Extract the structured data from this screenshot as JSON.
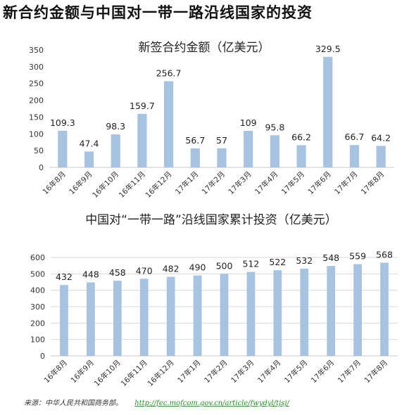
{
  "title": "新合约金额与中国对一带一路沿线国家的投资",
  "source": {
    "label": "来源：中华人民共和国商务部。",
    "url": "http://fec.mofcom.gov.cn/article/fwydyl/tjsj/"
  },
  "colors": {
    "bar": "#a7c3e0",
    "axis": "#c8c8c8",
    "text": "#222222"
  },
  "chart_data": [
    {
      "type": "bar",
      "title": "新签合约金额（亿美元）",
      "categories": [
        "16年8月",
        "16年9月",
        "16年10月",
        "16年11月",
        "16年12月",
        "17年1月",
        "17年2月",
        "17年3月",
        "17年4月",
        "17年5月",
        "17年6月",
        "17年7月",
        "17年8月"
      ],
      "values": [
        109.3,
        47.4,
        98.3,
        159.7,
        256.7,
        56.7,
        57,
        109,
        95.8,
        66.2,
        329.5,
        66.7,
        64.2
      ],
      "data_labels": [
        "109.3",
        "47.4",
        "98.3",
        "159.7",
        "256.7",
        "56.7",
        "57",
        "109",
        "95.8",
        "66.2",
        "329.5",
        "66.7",
        "64.2"
      ],
      "yticks": [
        "0",
        "50",
        "100",
        "150",
        "200",
        "250",
        "300",
        "350"
      ],
      "ylim": [
        0,
        350
      ],
      "grid": false
    },
    {
      "type": "bar",
      "title": "中国对“一带一路”沿线国家累计投资（亿美元）",
      "categories": [
        "16年8月",
        "16年9月",
        "16年10月",
        "16年11月",
        "16年12月",
        "17年1月",
        "17年2月",
        "17年3月",
        "17年4月",
        "17年5月",
        "17年6月",
        "17年7月",
        "17年8月"
      ],
      "values": [
        432,
        448,
        458,
        470,
        482,
        490,
        500,
        512,
        522,
        532,
        548,
        559,
        568
      ],
      "data_labels": [
        "432",
        "448",
        "458",
        "470",
        "482",
        "490",
        "500",
        "512",
        "522",
        "532",
        "548",
        "559",
        "568"
      ],
      "yticks": [
        "0",
        "100",
        "200",
        "300",
        "400",
        "500",
        "600"
      ],
      "ylim": [
        0,
        600
      ],
      "grid": true
    }
  ]
}
